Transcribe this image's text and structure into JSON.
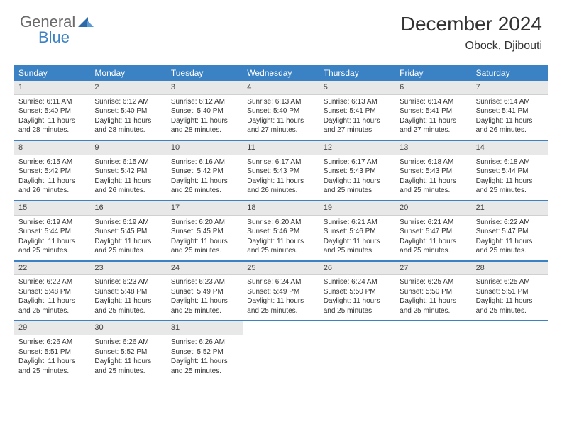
{
  "logo": {
    "general": "General",
    "blue": "Blue"
  },
  "title": "December 2024",
  "location": "Obock, Djibouti",
  "colors": {
    "header_bg": "#3b82c4",
    "header_text": "#ffffff",
    "daynum_bg": "#e8e8e8",
    "border": "#3b82c4",
    "text": "#333333"
  },
  "day_headers": [
    "Sunday",
    "Monday",
    "Tuesday",
    "Wednesday",
    "Thursday",
    "Friday",
    "Saturday"
  ],
  "grid": [
    [
      {
        "n": "1",
        "sr": "6:11 AM",
        "ss": "5:40 PM",
        "dl": "11 hours and 28 minutes."
      },
      {
        "n": "2",
        "sr": "6:12 AM",
        "ss": "5:40 PM",
        "dl": "11 hours and 28 minutes."
      },
      {
        "n": "3",
        "sr": "6:12 AM",
        "ss": "5:40 PM",
        "dl": "11 hours and 28 minutes."
      },
      {
        "n": "4",
        "sr": "6:13 AM",
        "ss": "5:40 PM",
        "dl": "11 hours and 27 minutes."
      },
      {
        "n": "5",
        "sr": "6:13 AM",
        "ss": "5:41 PM",
        "dl": "11 hours and 27 minutes."
      },
      {
        "n": "6",
        "sr": "6:14 AM",
        "ss": "5:41 PM",
        "dl": "11 hours and 27 minutes."
      },
      {
        "n": "7",
        "sr": "6:14 AM",
        "ss": "5:41 PM",
        "dl": "11 hours and 26 minutes."
      }
    ],
    [
      {
        "n": "8",
        "sr": "6:15 AM",
        "ss": "5:42 PM",
        "dl": "11 hours and 26 minutes."
      },
      {
        "n": "9",
        "sr": "6:15 AM",
        "ss": "5:42 PM",
        "dl": "11 hours and 26 minutes."
      },
      {
        "n": "10",
        "sr": "6:16 AM",
        "ss": "5:42 PM",
        "dl": "11 hours and 26 minutes."
      },
      {
        "n": "11",
        "sr": "6:17 AM",
        "ss": "5:43 PM",
        "dl": "11 hours and 26 minutes."
      },
      {
        "n": "12",
        "sr": "6:17 AM",
        "ss": "5:43 PM",
        "dl": "11 hours and 25 minutes."
      },
      {
        "n": "13",
        "sr": "6:18 AM",
        "ss": "5:43 PM",
        "dl": "11 hours and 25 minutes."
      },
      {
        "n": "14",
        "sr": "6:18 AM",
        "ss": "5:44 PM",
        "dl": "11 hours and 25 minutes."
      }
    ],
    [
      {
        "n": "15",
        "sr": "6:19 AM",
        "ss": "5:44 PM",
        "dl": "11 hours and 25 minutes."
      },
      {
        "n": "16",
        "sr": "6:19 AM",
        "ss": "5:45 PM",
        "dl": "11 hours and 25 minutes."
      },
      {
        "n": "17",
        "sr": "6:20 AM",
        "ss": "5:45 PM",
        "dl": "11 hours and 25 minutes."
      },
      {
        "n": "18",
        "sr": "6:20 AM",
        "ss": "5:46 PM",
        "dl": "11 hours and 25 minutes."
      },
      {
        "n": "19",
        "sr": "6:21 AM",
        "ss": "5:46 PM",
        "dl": "11 hours and 25 minutes."
      },
      {
        "n": "20",
        "sr": "6:21 AM",
        "ss": "5:47 PM",
        "dl": "11 hours and 25 minutes."
      },
      {
        "n": "21",
        "sr": "6:22 AM",
        "ss": "5:47 PM",
        "dl": "11 hours and 25 minutes."
      }
    ],
    [
      {
        "n": "22",
        "sr": "6:22 AM",
        "ss": "5:48 PM",
        "dl": "11 hours and 25 minutes."
      },
      {
        "n": "23",
        "sr": "6:23 AM",
        "ss": "5:48 PM",
        "dl": "11 hours and 25 minutes."
      },
      {
        "n": "24",
        "sr": "6:23 AM",
        "ss": "5:49 PM",
        "dl": "11 hours and 25 minutes."
      },
      {
        "n": "25",
        "sr": "6:24 AM",
        "ss": "5:49 PM",
        "dl": "11 hours and 25 minutes."
      },
      {
        "n": "26",
        "sr": "6:24 AM",
        "ss": "5:50 PM",
        "dl": "11 hours and 25 minutes."
      },
      {
        "n": "27",
        "sr": "6:25 AM",
        "ss": "5:50 PM",
        "dl": "11 hours and 25 minutes."
      },
      {
        "n": "28",
        "sr": "6:25 AM",
        "ss": "5:51 PM",
        "dl": "11 hours and 25 minutes."
      }
    ],
    [
      {
        "n": "29",
        "sr": "6:26 AM",
        "ss": "5:51 PM",
        "dl": "11 hours and 25 minutes."
      },
      {
        "n": "30",
        "sr": "6:26 AM",
        "ss": "5:52 PM",
        "dl": "11 hours and 25 minutes."
      },
      {
        "n": "31",
        "sr": "6:26 AM",
        "ss": "5:52 PM",
        "dl": "11 hours and 25 minutes."
      },
      null,
      null,
      null,
      null
    ]
  ],
  "labels": {
    "sunrise": "Sunrise: ",
    "sunset": "Sunset: ",
    "daylight": "Daylight: "
  }
}
